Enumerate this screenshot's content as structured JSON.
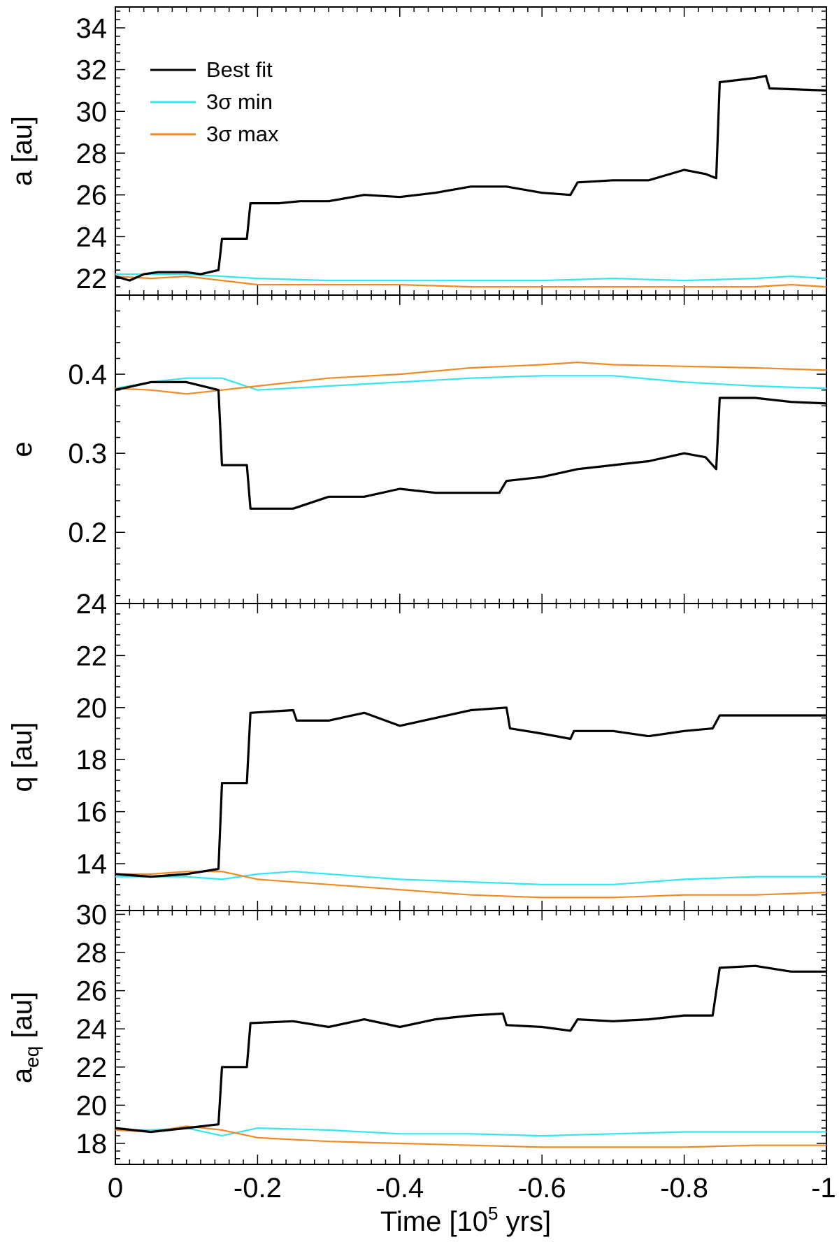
{
  "figure": {
    "xlabel": "Time [10",
    "xlabel_sup": "5",
    "xlabel_tail": " yrs]"
  },
  "legend": {
    "items": [
      {
        "label": "Best fit",
        "color": "#000000"
      },
      {
        "label": "3σ min",
        "color": "#33e6f0"
      },
      {
        "label": "3σ max",
        "color": "#f08a24"
      }
    ]
  },
  "chart_data": [
    {
      "type": "line",
      "ylabel": "a [au]",
      "ylim": [
        21.2,
        35.0
      ],
      "yticks": [
        22,
        24,
        26,
        28,
        30,
        32,
        34
      ],
      "xlim": [
        0,
        -1
      ],
      "xticks": [
        0,
        -0.2,
        -0.4,
        -0.6,
        -0.8,
        -1
      ],
      "xticklabels": [
        "0",
        "-0.2",
        "-0.4",
        "-0.6",
        "-0.8",
        "-1"
      ],
      "series": [
        {
          "name": "Best fit",
          "color": "#000000",
          "x": [
            0,
            -0.02,
            -0.04,
            -0.06,
            -0.08,
            -0.1,
            -0.12,
            -0.145,
            -0.15,
            -0.185,
            -0.19,
            -0.23,
            -0.26,
            -0.3,
            -0.35,
            -0.4,
            -0.45,
            -0.5,
            -0.55,
            -0.6,
            -0.64,
            -0.65,
            -0.7,
            -0.75,
            -0.8,
            -0.83,
            -0.845,
            -0.85,
            -0.9,
            -0.915,
            -0.92,
            -1
          ],
          "y": [
            22.1,
            21.9,
            22.2,
            22.3,
            22.3,
            22.3,
            22.2,
            22.4,
            23.9,
            23.9,
            25.6,
            25.6,
            25.7,
            25.7,
            26.0,
            25.9,
            26.1,
            26.4,
            26.4,
            26.1,
            26.0,
            26.6,
            26.7,
            26.7,
            27.2,
            27.0,
            26.8,
            31.4,
            31.6,
            31.7,
            31.1,
            31.0
          ]
        },
        {
          "name": "3σ min",
          "color": "#33e6f0",
          "x": [
            0,
            -0.05,
            -0.1,
            -0.15,
            -0.2,
            -0.3,
            -0.4,
            -0.5,
            -0.6,
            -0.7,
            -0.8,
            -0.9,
            -0.95,
            -1
          ],
          "y": [
            22.2,
            22.2,
            22.2,
            22.1,
            22.0,
            21.9,
            21.9,
            21.9,
            21.9,
            22.0,
            21.9,
            22.0,
            22.1,
            22.0
          ]
        },
        {
          "name": "3σ max",
          "color": "#f08a24",
          "x": [
            0,
            -0.05,
            -0.1,
            -0.15,
            -0.2,
            -0.3,
            -0.4,
            -0.5,
            -0.6,
            -0.7,
            -0.8,
            -0.9,
            -0.95,
            -1
          ],
          "y": [
            22.1,
            22.0,
            22.1,
            21.9,
            21.7,
            21.7,
            21.7,
            21.6,
            21.6,
            21.6,
            21.6,
            21.6,
            21.7,
            21.6
          ]
        }
      ]
    },
    {
      "type": "line",
      "ylabel": "e",
      "ylim": [
        0.11,
        0.5
      ],
      "yticks": [
        0.2,
        0.3,
        0.4
      ],
      "yticklabels": [
        "0.2",
        "0.3",
        "0.4"
      ],
      "xlim": [
        0,
        -1
      ],
      "series": [
        {
          "name": "Best fit",
          "color": "#000000",
          "x": [
            0,
            -0.05,
            -0.1,
            -0.145,
            -0.15,
            -0.185,
            -0.19,
            -0.25,
            -0.3,
            -0.35,
            -0.4,
            -0.45,
            -0.5,
            -0.54,
            -0.55,
            -0.6,
            -0.65,
            -0.7,
            -0.75,
            -0.8,
            -0.83,
            -0.845,
            -0.85,
            -0.9,
            -0.95,
            -1
          ],
          "y": [
            0.38,
            0.39,
            0.39,
            0.38,
            0.285,
            0.285,
            0.23,
            0.23,
            0.245,
            0.245,
            0.255,
            0.25,
            0.25,
            0.25,
            0.265,
            0.27,
            0.28,
            0.285,
            0.29,
            0.3,
            0.295,
            0.28,
            0.37,
            0.37,
            0.365,
            0.363
          ]
        },
        {
          "name": "3σ min",
          "color": "#33e6f0",
          "x": [
            0,
            -0.05,
            -0.1,
            -0.15,
            -0.2,
            -0.3,
            -0.4,
            -0.5,
            -0.6,
            -0.7,
            -0.8,
            -0.9,
            -1
          ],
          "y": [
            0.382,
            0.39,
            0.395,
            0.395,
            0.38,
            0.385,
            0.39,
            0.395,
            0.398,
            0.398,
            0.39,
            0.385,
            0.382
          ]
        },
        {
          "name": "3σ max",
          "color": "#f08a24",
          "x": [
            0,
            -0.05,
            -0.1,
            -0.15,
            -0.2,
            -0.3,
            -0.4,
            -0.5,
            -0.6,
            -0.65,
            -0.7,
            -0.8,
            -0.9,
            -1
          ],
          "y": [
            0.382,
            0.38,
            0.375,
            0.38,
            0.385,
            0.395,
            0.4,
            0.408,
            0.412,
            0.415,
            0.412,
            0.41,
            0.408,
            0.405
          ]
        }
      ]
    },
    {
      "type": "line",
      "ylabel": "q [au]",
      "ylim": [
        12.2,
        24.0
      ],
      "yticks": [
        14,
        16,
        18,
        20,
        22,
        24
      ],
      "xlim": [
        0,
        -1
      ],
      "series": [
        {
          "name": "Best fit",
          "color": "#000000",
          "x": [
            0,
            -0.05,
            -0.1,
            -0.145,
            -0.15,
            -0.185,
            -0.19,
            -0.25,
            -0.255,
            -0.3,
            -0.35,
            -0.4,
            -0.45,
            -0.5,
            -0.55,
            -0.555,
            -0.6,
            -0.64,
            -0.645,
            -0.7,
            -0.75,
            -0.8,
            -0.84,
            -0.85,
            -0.9,
            -1
          ],
          "y": [
            13.6,
            13.5,
            13.6,
            13.8,
            17.1,
            17.1,
            19.8,
            19.9,
            19.5,
            19.5,
            19.8,
            19.3,
            19.6,
            19.9,
            20.0,
            19.2,
            19.0,
            18.8,
            19.1,
            19.1,
            18.9,
            19.1,
            19.2,
            19.7,
            19.7,
            19.7
          ]
        },
        {
          "name": "3σ min",
          "color": "#33e6f0",
          "x": [
            0,
            -0.05,
            -0.1,
            -0.15,
            -0.2,
            -0.25,
            -0.3,
            -0.4,
            -0.5,
            -0.6,
            -0.7,
            -0.8,
            -0.9,
            -1
          ],
          "y": [
            13.5,
            13.5,
            13.5,
            13.4,
            13.6,
            13.7,
            13.6,
            13.4,
            13.3,
            13.2,
            13.2,
            13.4,
            13.5,
            13.5
          ]
        },
        {
          "name": "3σ max",
          "color": "#f08a24",
          "x": [
            0,
            -0.05,
            -0.1,
            -0.15,
            -0.2,
            -0.3,
            -0.4,
            -0.5,
            -0.6,
            -0.7,
            -0.8,
            -0.9,
            -1
          ],
          "y": [
            13.6,
            13.6,
            13.7,
            13.7,
            13.4,
            13.2,
            13.0,
            12.8,
            12.7,
            12.7,
            12.8,
            12.8,
            12.9
          ]
        }
      ]
    },
    {
      "type": "line",
      "ylabel": "a",
      "ylabel_sub": "eq",
      "ylabel_tail": " [au]",
      "ylim": [
        16.9,
        30.2
      ],
      "yticks": [
        18,
        20,
        22,
        24,
        26,
        28,
        30
      ],
      "xlim": [
        0,
        -1
      ],
      "series": [
        {
          "name": "Best fit",
          "color": "#000000",
          "x": [
            0,
            -0.05,
            -0.1,
            -0.145,
            -0.15,
            -0.185,
            -0.19,
            -0.25,
            -0.3,
            -0.35,
            -0.4,
            -0.45,
            -0.5,
            -0.545,
            -0.55,
            -0.6,
            -0.64,
            -0.65,
            -0.7,
            -0.75,
            -0.8,
            -0.84,
            -0.85,
            -0.9,
            -0.95,
            -1
          ],
          "y": [
            18.8,
            18.6,
            18.8,
            19.0,
            22.0,
            22.0,
            24.3,
            24.4,
            24.1,
            24.5,
            24.1,
            24.5,
            24.7,
            24.8,
            24.2,
            24.1,
            23.9,
            24.5,
            24.4,
            24.5,
            24.7,
            24.7,
            27.2,
            27.3,
            27.0,
            27.0
          ]
        },
        {
          "name": "3σ min",
          "color": "#33e6f0",
          "x": [
            0,
            -0.05,
            -0.1,
            -0.15,
            -0.2,
            -0.3,
            -0.4,
            -0.5,
            -0.6,
            -0.7,
            -0.8,
            -0.9,
            -1
          ],
          "y": [
            18.7,
            18.7,
            18.8,
            18.4,
            18.8,
            18.7,
            18.5,
            18.5,
            18.4,
            18.5,
            18.6,
            18.6,
            18.6
          ]
        },
        {
          "name": "3σ max",
          "color": "#f08a24",
          "x": [
            0,
            -0.05,
            -0.1,
            -0.15,
            -0.2,
            -0.3,
            -0.4,
            -0.5,
            -0.6,
            -0.7,
            -0.8,
            -0.9,
            -1
          ],
          "y": [
            18.7,
            18.6,
            18.9,
            18.7,
            18.3,
            18.1,
            18.0,
            17.9,
            17.8,
            17.8,
            17.8,
            17.9,
            17.9
          ]
        }
      ]
    }
  ]
}
